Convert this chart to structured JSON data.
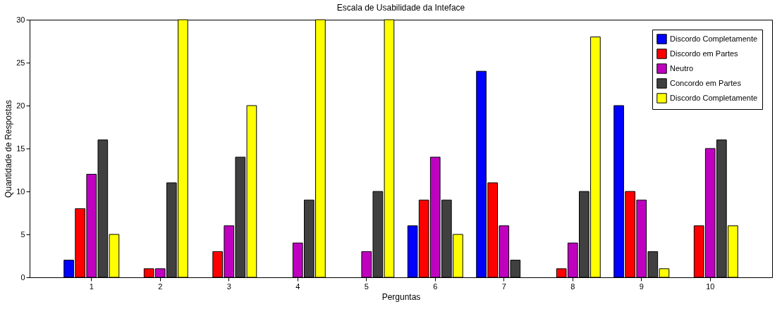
{
  "chart_data": {
    "type": "bar",
    "title": "Escala de Usabilidade da Inteface",
    "xlabel": "Perguntas",
    "ylabel": "Quantidade de Respostas",
    "categories": [
      "1",
      "2",
      "3",
      "4",
      "5",
      "6",
      "7",
      "8",
      "9",
      "10"
    ],
    "series": [
      {
        "name": "Discordo Completamente",
        "color": "#0000ff",
        "values": [
          2,
          0,
          0,
          0,
          0,
          6,
          24,
          0,
          20,
          0
        ]
      },
      {
        "name": "Discordo em Partes",
        "color": "#ff0000",
        "values": [
          8,
          1,
          3,
          0,
          0,
          9,
          11,
          1,
          10,
          6
        ]
      },
      {
        "name": "Neutro",
        "color": "#bf00bf",
        "values": [
          12,
          1,
          6,
          4,
          3,
          14,
          6,
          4,
          9,
          15
        ]
      },
      {
        "name": "Concordo em Partes",
        "color": "#404040",
        "values": [
          16,
          11,
          14,
          9,
          10,
          9,
          2,
          10,
          3,
          16
        ]
      },
      {
        "name": "Discordo Completamente",
        "color": "#ffff00",
        "values": [
          5,
          30,
          20,
          30,
          30,
          5,
          0,
          28,
          1,
          6
        ]
      }
    ],
    "ylim": [
      0,
      30
    ],
    "yticks": [
      0,
      5,
      10,
      15,
      20,
      25,
      30
    ],
    "grid": false,
    "legend": "top right"
  }
}
